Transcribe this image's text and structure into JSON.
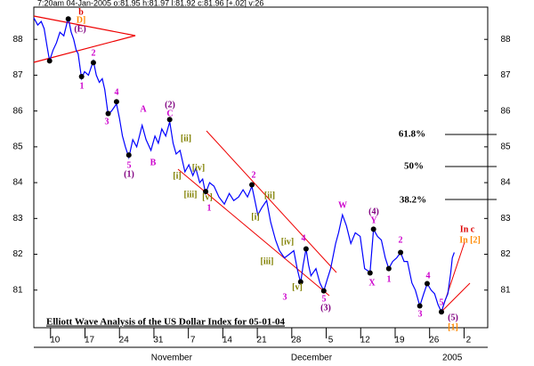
{
  "chart_data": {
    "type": "line",
    "header": "7:20am 04-Jan-2005  o:81.95 h:81.97 l:81.92 c:81.96 [+.02] v:26",
    "title": "Elliott Wave Analysis of the US Dollar Index for 05-01-04",
    "xlim": [
      5.7,
      97.9
    ],
    "ylim": [
      79.95,
      88.9
    ],
    "yticks": [
      81,
      82,
      83,
      84,
      85,
      86,
      87,
      88
    ],
    "xticks": [
      {
        "value": 10,
        "label": "10"
      },
      {
        "value": 17,
        "label": "17"
      },
      {
        "value": 24,
        "label": "24"
      },
      {
        "value": 31,
        "label": "31"
      },
      {
        "value": 38,
        "label": "7"
      },
      {
        "value": 45,
        "label": "14"
      },
      {
        "value": 52,
        "label": "21"
      },
      {
        "value": 59,
        "label": "28"
      },
      {
        "value": 66,
        "label": "5"
      },
      {
        "value": 73,
        "label": "12"
      },
      {
        "value": 80,
        "label": "19"
      },
      {
        "value": 87,
        "label": "26"
      },
      {
        "value": 94,
        "label": "2"
      }
    ],
    "month_ticks": [
      {
        "value": 33.7,
        "label": "November"
      },
      {
        "value": 62.1,
        "label": "December"
      },
      {
        "value": 90.7,
        "label": "2005"
      }
    ],
    "series": [
      {
        "color": "#0000ff",
        "x": [
          5.7,
          6.5,
          7.2,
          7.8,
          8.4,
          8.9,
          9.6,
          10.3,
          11,
          11.8,
          12.7,
          13.3,
          13.8,
          14.3,
          14.7,
          15.4,
          16,
          16.8,
          17.8,
          18.4,
          19,
          19.6,
          20.1,
          20.8,
          21.5,
          22.5,
          23.1,
          23.7,
          24.3,
          25,
          25.8,
          26.6,
          27.7,
          28.5,
          29.5,
          30.3,
          31,
          31.7,
          32.5,
          33.3,
          34,
          34.6,
          35.4,
          36.4,
          37.2,
          38,
          38.6,
          39.4,
          40,
          40.6,
          41.4,
          42.3,
          43.3,
          44.4,
          45.4,
          46.3,
          47.3,
          48.2,
          49.1,
          50,
          50.6,
          51.2,
          52,
          53,
          53.8,
          54.8,
          55.6,
          56.6,
          57.6,
          58.5,
          59.2,
          59.9,
          60.4,
          61,
          61.5,
          62,
          63,
          63.8,
          64.6,
          65.3,
          66,
          67,
          67.6,
          68.4,
          69.2,
          70.1,
          71,
          72,
          72.9,
          74,
          74.7,
          75.5,
          76.3,
          77.1,
          77.8,
          78.6,
          79.4,
          80.2,
          80.9,
          81.6,
          82.5,
          83.2,
          84.1,
          84.9,
          85.6,
          86.4,
          87.1,
          87.8,
          88.5,
          89.2,
          89.8,
          90.4,
          90.7,
          91.1
        ],
        "values": [
          88.6,
          88.4,
          88.5,
          88.3,
          87.8,
          87.4,
          87.7,
          87.9,
          88.2,
          88.1,
          88.6,
          88.2,
          88.0,
          87.7,
          87.6,
          86.9,
          87.1,
          87.0,
          87.4,
          87.0,
          86.8,
          86.9,
          86.6,
          85.9,
          86.0,
          86.2,
          85.8,
          85.3,
          85.0,
          84.7,
          85.2,
          85.0,
          85.6,
          85.2,
          84.9,
          85.3,
          85.1,
          85.5,
          85.3,
          85.7,
          85.1,
          84.8,
          84.9,
          84.3,
          84.5,
          84.2,
          84.4,
          84.0,
          84.1,
          83.7,
          84.0,
          83.9,
          83.6,
          83.4,
          83.7,
          83.5,
          83.6,
          83.8,
          83.6,
          83.9,
          83.5,
          83.1,
          83.3,
          83.5,
          82.9,
          82.4,
          82.1,
          81.9,
          82.0,
          82.1,
          81.6,
          81.2,
          81.7,
          82.15,
          81.7,
          81.4,
          81.6,
          81.2,
          80.98,
          81.3,
          81.6,
          82.3,
          82.6,
          83.1,
          82.8,
          82.3,
          82.6,
          82.5,
          81.6,
          81.5,
          82.7,
          82.5,
          82.4,
          81.9,
          81.6,
          81.8,
          81.9,
          82.05,
          81.8,
          81.8,
          81.2,
          81.0,
          80.56,
          80.9,
          81.18,
          81.0,
          80.9,
          80.6,
          80.39,
          80.7,
          80.9,
          81.5,
          81.9,
          82.05
        ]
      },
      {
        "type": "scatter",
        "color": "#000000",
        "x": [
          8.9,
          12.7,
          15.4,
          17.8,
          20.8,
          22.5,
          25,
          33.3,
          40.6,
          50,
          59.9,
          61,
          64.6,
          74,
          74.7,
          77.8,
          80.2,
          84.1,
          85.6,
          88.5
        ],
        "values": [
          87.4,
          88.57,
          86.96,
          87.35,
          85.93,
          86.26,
          84.77,
          85.76,
          83.75,
          83.94,
          81.23,
          82.15,
          80.98,
          81.48,
          82.7,
          81.6,
          82.05,
          80.56,
          81.18,
          80.39
        ]
      }
    ],
    "annotations": [
      {
        "text": "b",
        "color": "#dd0000"
      },
      {
        "text": "D]",
        "color": "#ff8800"
      },
      {
        "text": "(E)",
        "color": "#800080"
      },
      {
        "text": "1",
        "color": "#cc00cc"
      },
      {
        "text": "2",
        "color": "#cc00cc"
      },
      {
        "text": "3",
        "color": "#cc00cc"
      },
      {
        "text": "4",
        "color": "#cc00cc"
      },
      {
        "text": "5",
        "color": "#cc00cc"
      },
      {
        "text": "(1)",
        "color": "#800080"
      },
      {
        "text": "A",
        "color": "#cc00cc"
      },
      {
        "text": "B",
        "color": "#cc00cc"
      },
      {
        "text": "(2)",
        "color": "#800080"
      },
      {
        "text": "C",
        "color": "#cc00cc"
      },
      {
        "text": "[ii]",
        "color": "#808000"
      },
      {
        "text": "[i]",
        "color": "#808000"
      },
      {
        "text": "[iv]",
        "color": "#808000"
      },
      {
        "text": "[iii]",
        "color": "#808000"
      },
      {
        "text": "[v]",
        "color": "#808000"
      },
      {
        "text": "1",
        "color": "#cc00cc"
      },
      {
        "text": "2",
        "color": "#cc00cc"
      },
      {
        "text": "[ii]",
        "color": "#808000"
      },
      {
        "text": "[i]",
        "color": "#808000"
      },
      {
        "text": "[iv]",
        "color": "#808000"
      },
      {
        "text": "[iii]",
        "color": "#808000"
      },
      {
        "text": "[v]",
        "color": "#808000"
      },
      {
        "text": "3",
        "color": "#cc00cc"
      },
      {
        "text": "4",
        "color": "#cc00cc"
      },
      {
        "text": "5",
        "color": "#cc00cc"
      },
      {
        "text": "(3)",
        "color": "#800080"
      },
      {
        "text": "W",
        "color": "#cc00cc"
      },
      {
        "text": "(4)",
        "color": "#800080"
      },
      {
        "text": "Y",
        "color": "#cc00cc"
      },
      {
        "text": "X",
        "color": "#cc00cc"
      },
      {
        "text": "1",
        "color": "#cc00cc"
      },
      {
        "text": "2",
        "color": "#cc00cc"
      },
      {
        "text": "3",
        "color": "#cc00cc"
      },
      {
        "text": "4",
        "color": "#cc00cc"
      },
      {
        "text": "5",
        "color": "#cc00cc"
      },
      {
        "text": "(5)",
        "color": "#800080"
      },
      {
        "text": "[1]",
        "color": "#ff8800"
      },
      {
        "text": "In c",
        "color": "#dd0000"
      },
      {
        "text": "In [2]",
        "color": "#ff8800"
      }
    ],
    "fib_labels": [
      "61.8%",
      "50%",
      "38.2%"
    ]
  }
}
